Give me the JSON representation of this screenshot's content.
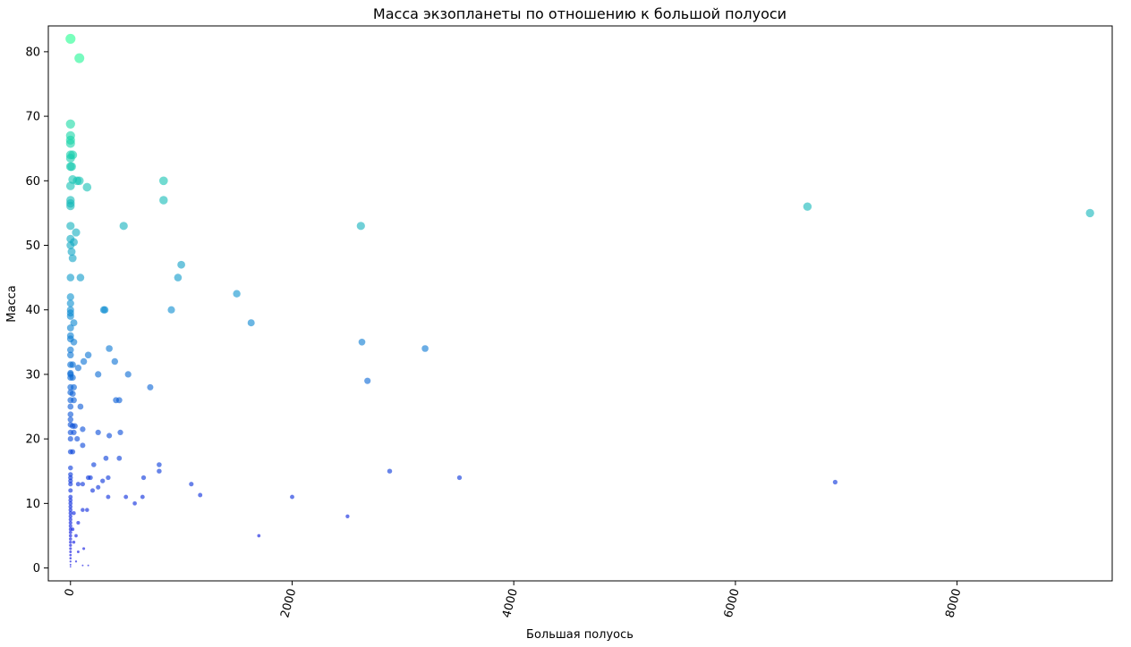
{
  "chart_data": {
    "type": "scatter",
    "title": "Масса экзопланеты по отношению к большой полуоси",
    "xlabel": "Большая полуось",
    "ylabel": "Масса",
    "xlim": [
      -200,
      9400
    ],
    "ylim": [
      -2,
      84
    ],
    "x_ticks": [
      0,
      2000,
      4000,
      6000,
      8000
    ],
    "x_tick_labels": [
      "0",
      "2000",
      "4000",
      "6000",
      "8000"
    ],
    "x_tick_rotation": -75,
    "y_ticks": [
      0,
      10,
      20,
      30,
      40,
      50,
      60,
      70,
      80
    ],
    "y_tick_labels": [
      "0",
      "10",
      "20",
      "30",
      "40",
      "50",
      "60",
      "70",
      "80"
    ],
    "grid": false,
    "legend": "none",
    "color_scale": {
      "low": "#0000e0",
      "mid": "#0a8fd0",
      "high": "#20ff90"
    },
    "marker_size_encodes": "Масса",
    "points": [
      {
        "x": 0,
        "y": 82
      },
      {
        "x": 80,
        "y": 79
      },
      {
        "x": 0,
        "y": 68.8
      },
      {
        "x": 0,
        "y": 67
      },
      {
        "x": 0,
        "y": 66.3
      },
      {
        "x": 0,
        "y": 65.8
      },
      {
        "x": 0,
        "y": 64
      },
      {
        "x": 20,
        "y": 64
      },
      {
        "x": 0,
        "y": 63.5
      },
      {
        "x": 0,
        "y": 62.2
      },
      {
        "x": 10,
        "y": 62.2
      },
      {
        "x": 20,
        "y": 60.2
      },
      {
        "x": 60,
        "y": 60
      },
      {
        "x": 80,
        "y": 60
      },
      {
        "x": 840,
        "y": 60
      },
      {
        "x": 150,
        "y": 59
      },
      {
        "x": 0,
        "y": 59.2
      },
      {
        "x": 840,
        "y": 57
      },
      {
        "x": 0,
        "y": 57
      },
      {
        "x": 0,
        "y": 56.5
      },
      {
        "x": 0,
        "y": 56.1
      },
      {
        "x": 6650,
        "y": 56
      },
      {
        "x": 9200,
        "y": 55
      },
      {
        "x": 0,
        "y": 53
      },
      {
        "x": 480,
        "y": 53
      },
      {
        "x": 2620,
        "y": 53
      },
      {
        "x": 50,
        "y": 52
      },
      {
        "x": 0,
        "y": 51
      },
      {
        "x": 30,
        "y": 50.5
      },
      {
        "x": 0,
        "y": 50
      },
      {
        "x": 10,
        "y": 49
      },
      {
        "x": 20,
        "y": 48
      },
      {
        "x": 1000,
        "y": 47
      },
      {
        "x": 0,
        "y": 45
      },
      {
        "x": 90,
        "y": 45
      },
      {
        "x": 970,
        "y": 45
      },
      {
        "x": 1500,
        "y": 42.5
      },
      {
        "x": 0,
        "y": 42
      },
      {
        "x": 0,
        "y": 41
      },
      {
        "x": 0,
        "y": 40
      },
      {
        "x": 0,
        "y": 39.5
      },
      {
        "x": 0,
        "y": 39
      },
      {
        "x": 300,
        "y": 40
      },
      {
        "x": 310,
        "y": 40
      },
      {
        "x": 910,
        "y": 40
      },
      {
        "x": 30,
        "y": 38
      },
      {
        "x": 1630,
        "y": 38
      },
      {
        "x": 0,
        "y": 37.2
      },
      {
        "x": 0,
        "y": 36
      },
      {
        "x": 0,
        "y": 35.5
      },
      {
        "x": 30,
        "y": 35
      },
      {
        "x": 2630,
        "y": 35
      },
      {
        "x": 350,
        "y": 34
      },
      {
        "x": 3200,
        "y": 34
      },
      {
        "x": 0,
        "y": 33.8
      },
      {
        "x": 0,
        "y": 33
      },
      {
        "x": 160,
        "y": 33
      },
      {
        "x": 120,
        "y": 32
      },
      {
        "x": 400,
        "y": 32
      },
      {
        "x": 0,
        "y": 31.5
      },
      {
        "x": 20,
        "y": 31.5
      },
      {
        "x": 70,
        "y": 31
      },
      {
        "x": 0,
        "y": 30.2
      },
      {
        "x": 0,
        "y": 30
      },
      {
        "x": 250,
        "y": 30
      },
      {
        "x": 520,
        "y": 30
      },
      {
        "x": 0,
        "y": 29.5
      },
      {
        "x": 20,
        "y": 29.5
      },
      {
        "x": 2680,
        "y": 29
      },
      {
        "x": 0,
        "y": 28
      },
      {
        "x": 30,
        "y": 28
      },
      {
        "x": 720,
        "y": 28
      },
      {
        "x": 0,
        "y": 27.2
      },
      {
        "x": 20,
        "y": 27
      },
      {
        "x": 0,
        "y": 26
      },
      {
        "x": 30,
        "y": 26
      },
      {
        "x": 410,
        "y": 26
      },
      {
        "x": 440,
        "y": 26
      },
      {
        "x": 0,
        "y": 25
      },
      {
        "x": 90,
        "y": 25
      },
      {
        "x": 0,
        "y": 23.8
      },
      {
        "x": 0,
        "y": 23
      },
      {
        "x": 0,
        "y": 22.2
      },
      {
        "x": 20,
        "y": 22
      },
      {
        "x": 40,
        "y": 22
      },
      {
        "x": 110,
        "y": 21.5
      },
      {
        "x": 0,
        "y": 21
      },
      {
        "x": 30,
        "y": 21
      },
      {
        "x": 250,
        "y": 21
      },
      {
        "x": 450,
        "y": 21
      },
      {
        "x": 350,
        "y": 20.5
      },
      {
        "x": 0,
        "y": 20
      },
      {
        "x": 60,
        "y": 20
      },
      {
        "x": 110,
        "y": 19
      },
      {
        "x": 0,
        "y": 18
      },
      {
        "x": 20,
        "y": 18
      },
      {
        "x": 320,
        "y": 17
      },
      {
        "x": 440,
        "y": 17
      },
      {
        "x": 210,
        "y": 16
      },
      {
        "x": 800,
        "y": 16
      },
      {
        "x": 0,
        "y": 15.5
      },
      {
        "x": 800,
        "y": 15
      },
      {
        "x": 2880,
        "y": 15
      },
      {
        "x": 0,
        "y": 14.5
      },
      {
        "x": 0,
        "y": 14
      },
      {
        "x": 160,
        "y": 14
      },
      {
        "x": 180,
        "y": 14
      },
      {
        "x": 340,
        "y": 14
      },
      {
        "x": 3510,
        "y": 14
      },
      {
        "x": 660,
        "y": 14
      },
      {
        "x": 290,
        "y": 13.5
      },
      {
        "x": 0,
        "y": 13.5
      },
      {
        "x": 6900,
        "y": 13.3
      },
      {
        "x": 1090,
        "y": 13
      },
      {
        "x": 70,
        "y": 13
      },
      {
        "x": 110,
        "y": 13
      },
      {
        "x": 0,
        "y": 13
      },
      {
        "x": 250,
        "y": 12.5
      },
      {
        "x": 0,
        "y": 12
      },
      {
        "x": 200,
        "y": 12
      },
      {
        "x": 1170,
        "y": 11.3
      },
      {
        "x": 0,
        "y": 11
      },
      {
        "x": 340,
        "y": 11
      },
      {
        "x": 500,
        "y": 11
      },
      {
        "x": 650,
        "y": 11
      },
      {
        "x": 2000,
        "y": 11
      },
      {
        "x": 0,
        "y": 10.5
      },
      {
        "x": 0,
        "y": 10
      },
      {
        "x": 580,
        "y": 10
      },
      {
        "x": 0,
        "y": 9.5
      },
      {
        "x": 110,
        "y": 9
      },
      {
        "x": 150,
        "y": 9
      },
      {
        "x": 0,
        "y": 9
      },
      {
        "x": 0,
        "y": 8.5
      },
      {
        "x": 30,
        "y": 8.5
      },
      {
        "x": 0,
        "y": 8
      },
      {
        "x": 2500,
        "y": 8
      },
      {
        "x": 0,
        "y": 7.5
      },
      {
        "x": 0,
        "y": 7
      },
      {
        "x": 70,
        "y": 7
      },
      {
        "x": 0,
        "y": 6.5
      },
      {
        "x": 0,
        "y": 6
      },
      {
        "x": 20,
        "y": 6
      },
      {
        "x": 0,
        "y": 5.5
      },
      {
        "x": 1700,
        "y": 5
      },
      {
        "x": 0,
        "y": 5
      },
      {
        "x": 50,
        "y": 5
      },
      {
        "x": 0,
        "y": 4.5
      },
      {
        "x": 0,
        "y": 4
      },
      {
        "x": 30,
        "y": 4
      },
      {
        "x": 0,
        "y": 3.5
      },
      {
        "x": 0,
        "y": 3
      },
      {
        "x": 120,
        "y": 3
      },
      {
        "x": 0,
        "y": 2.5
      },
      {
        "x": 70,
        "y": 2.5
      },
      {
        "x": 0,
        "y": 2
      },
      {
        "x": 0,
        "y": 1.5
      },
      {
        "x": 0,
        "y": 1
      },
      {
        "x": 50,
        "y": 1
      },
      {
        "x": 0,
        "y": 0.5
      },
      {
        "x": 110,
        "y": 0.4
      },
      {
        "x": 160,
        "y": 0.4
      },
      {
        "x": 0,
        "y": 0.2
      }
    ]
  }
}
